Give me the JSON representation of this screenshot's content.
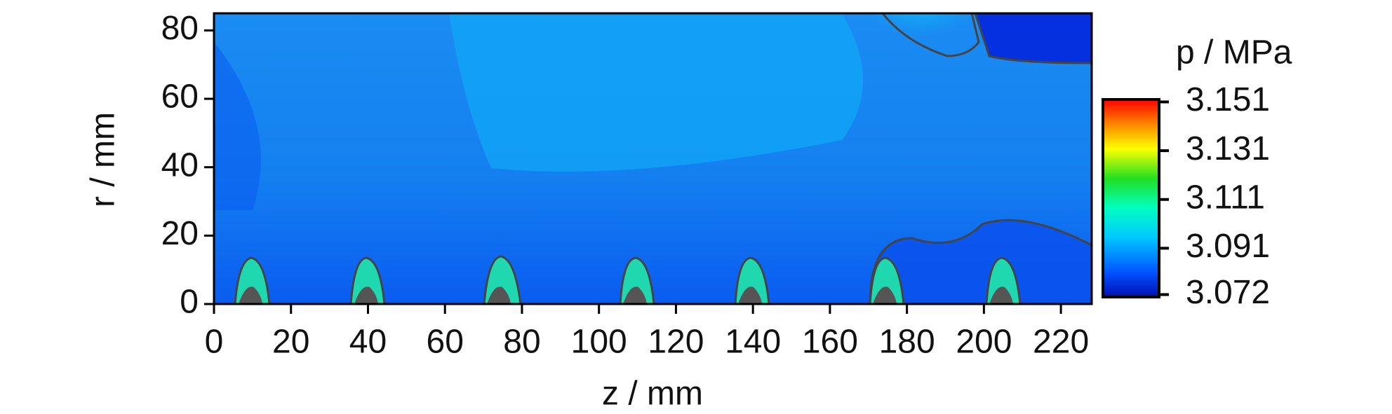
{
  "chart_data": {
    "type": "contour",
    "x_label": "z / mm",
    "y_label": "r / mm",
    "xlim": [
      0,
      228
    ],
    "xticks": [
      0,
      20,
      40,
      60,
      80,
      100,
      120,
      140,
      160,
      180,
      200,
      220
    ],
    "ylim": [
      0,
      85
    ],
    "yticks": [
      0,
      20,
      40,
      60,
      80
    ],
    "colorbar": {
      "title": "p / MPa",
      "lim": [
        3.071,
        3.152
      ],
      "ticks": [
        3.072,
        3.091,
        3.111,
        3.131,
        3.151
      ]
    }
  }
}
